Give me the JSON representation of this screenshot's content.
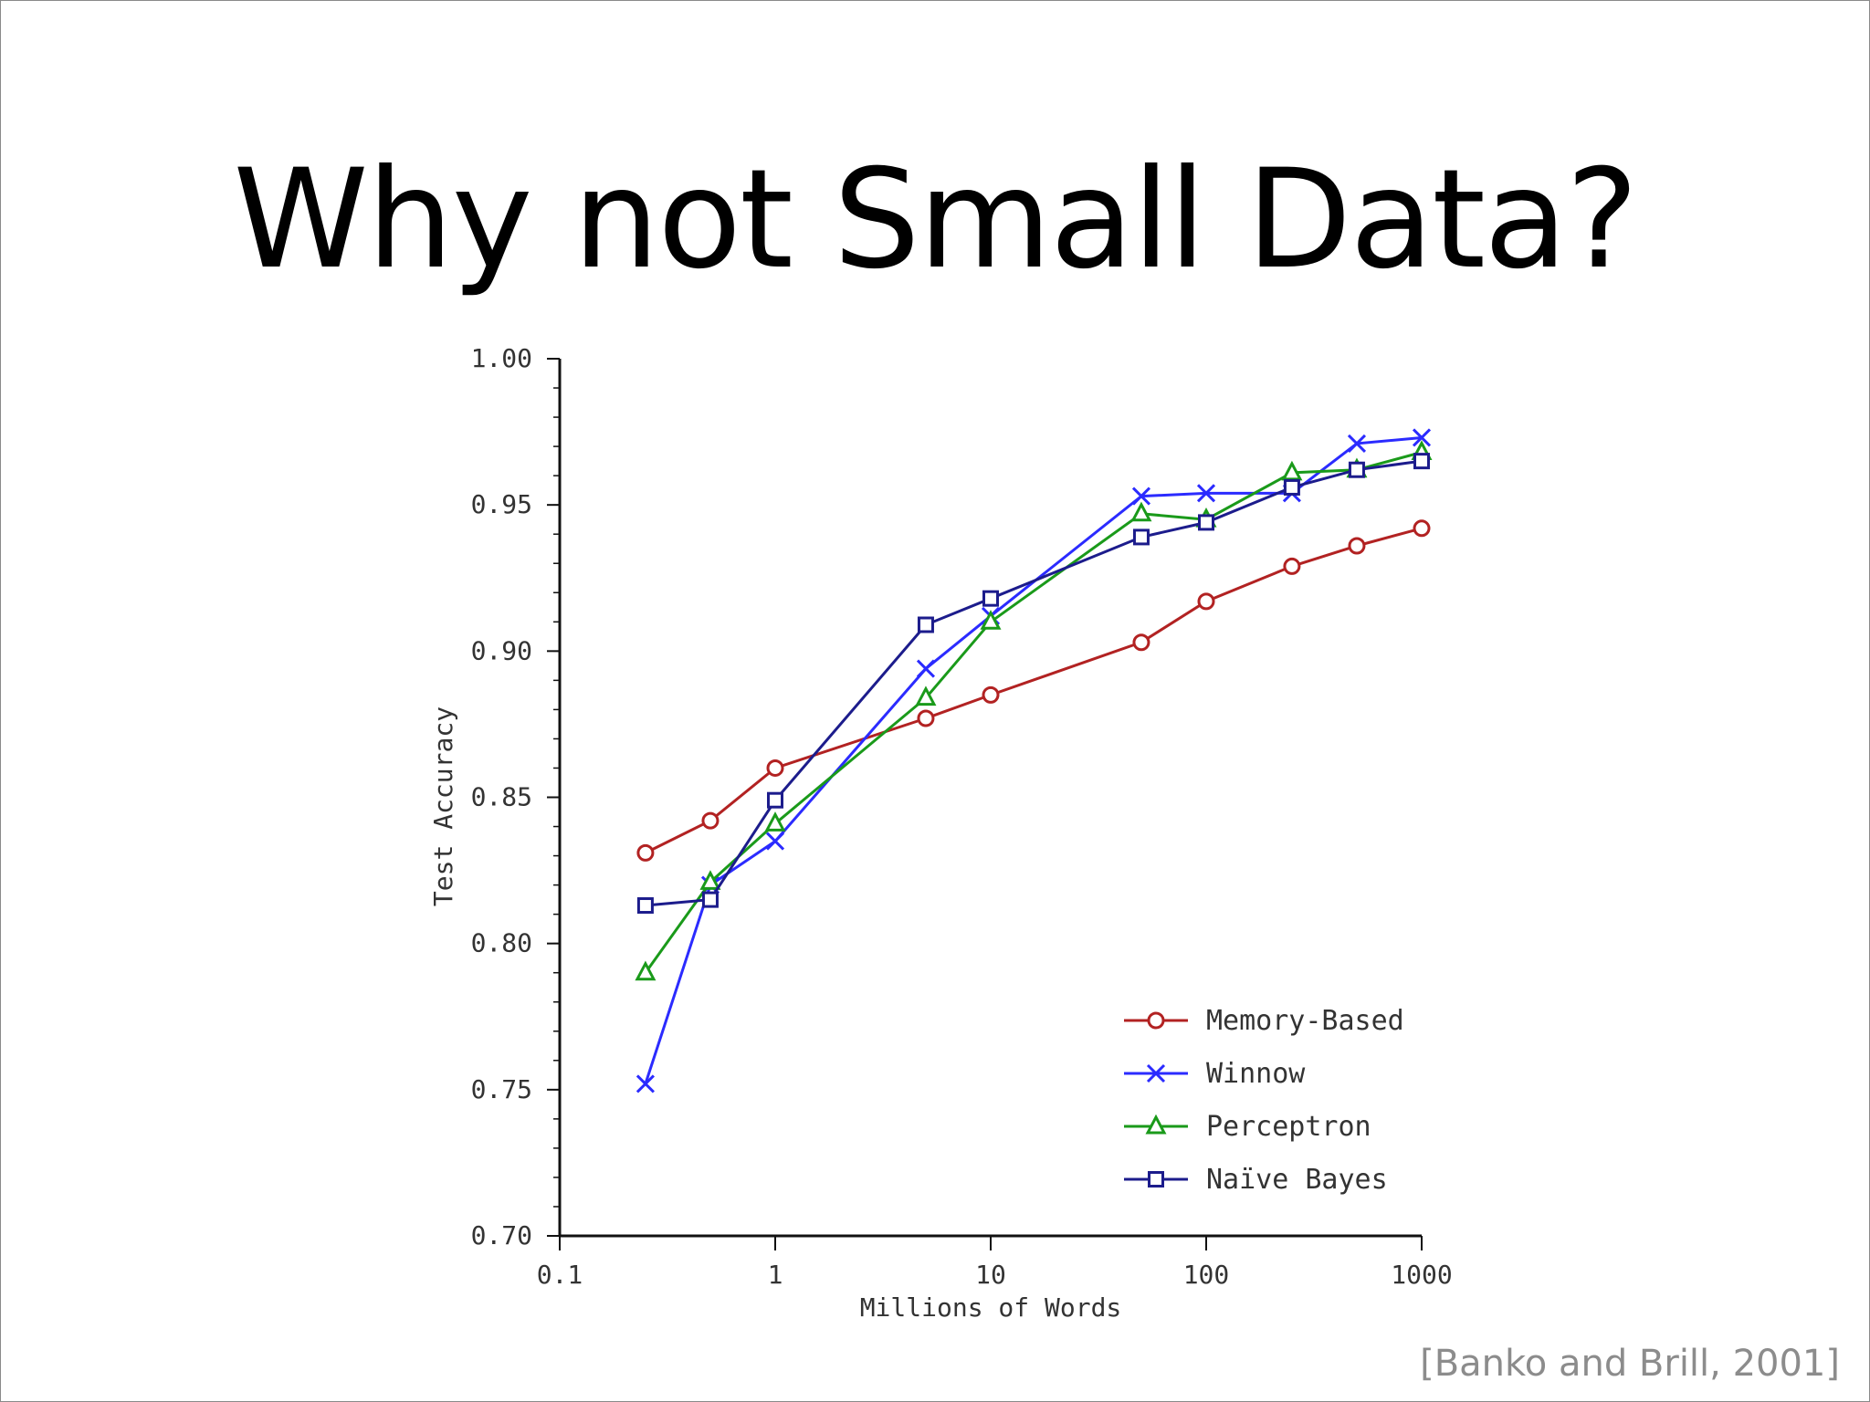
{
  "slide": {
    "title": "Why not Small Data?",
    "citation": "[Banko and Brill, 2001]"
  },
  "chart_data": {
    "type": "line",
    "title": "",
    "xlabel": "Millions of Words",
    "ylabel": "Test Accuracy",
    "xscale": "log",
    "xlim": [
      0.1,
      1000
    ],
    "ylim": [
      0.7,
      1.0
    ],
    "xticks": [
      "0.1",
      "1",
      "10",
      "100",
      "1000"
    ],
    "yticks": [
      "0.70",
      "0.75",
      "0.80",
      "0.85",
      "0.90",
      "0.95",
      "1.00"
    ],
    "grid": false,
    "legend_position": "bottom-right",
    "series": [
      {
        "name": "Memory-Based",
        "color": "#b22222",
        "marker": "circle",
        "x": [
          0.25,
          0.5,
          1,
          5,
          10,
          50,
          100,
          250,
          500,
          1000
        ],
        "y": [
          0.831,
          0.842,
          0.86,
          0.877,
          0.885,
          0.903,
          0.917,
          0.929,
          0.936,
          0.942
        ]
      },
      {
        "name": "Winnow",
        "color": "#2b2bff",
        "marker": "x",
        "x": [
          0.25,
          0.5,
          1,
          5,
          10,
          50,
          100,
          250,
          500,
          1000
        ],
        "y": [
          0.752,
          0.82,
          0.835,
          0.894,
          0.912,
          0.953,
          0.954,
          0.954,
          0.971,
          0.973
        ]
      },
      {
        "name": "Perceptron",
        "color": "#1a9a1a",
        "marker": "triangle",
        "x": [
          0.25,
          0.5,
          1,
          5,
          10,
          50,
          100,
          250,
          500,
          1000
        ],
        "y": [
          0.79,
          0.821,
          0.841,
          0.884,
          0.91,
          0.947,
          0.945,
          0.961,
          0.962,
          0.968
        ]
      },
      {
        "name": "Naïve Bayes",
        "color": "#1c1c8c",
        "marker": "square",
        "x": [
          0.25,
          0.5,
          1,
          5,
          10,
          50,
          100,
          250,
          500,
          1000
        ],
        "y": [
          0.813,
          0.815,
          0.849,
          0.909,
          0.918,
          0.939,
          0.944,
          0.956,
          0.962,
          0.965
        ]
      }
    ]
  }
}
